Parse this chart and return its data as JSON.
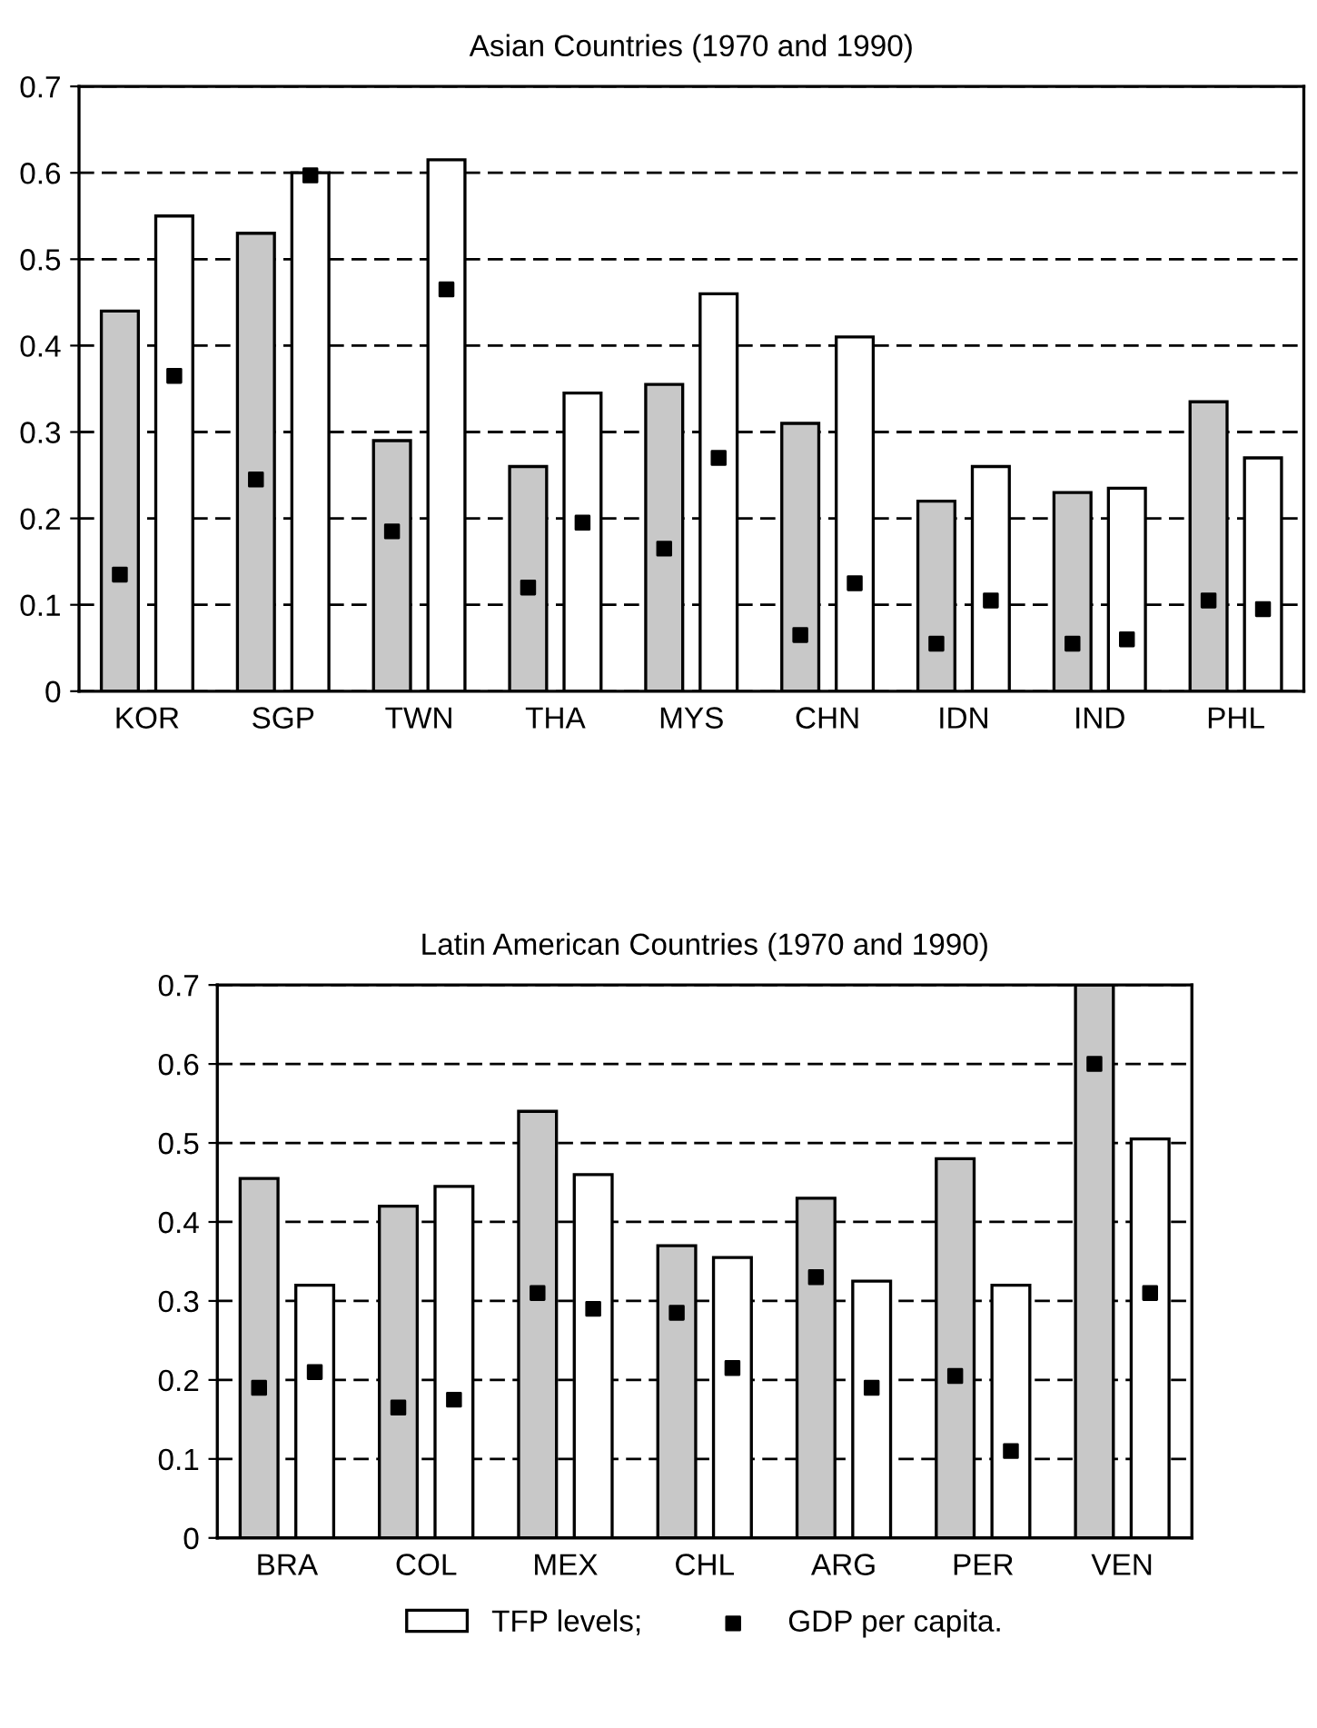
{
  "chart_data": [
    {
      "type": "bar",
      "title": "Asian Countries (1970 and 1990)",
      "categories": [
        "KOR",
        "SGP",
        "TWN",
        "THA",
        "MYS",
        "CHN",
        "IDN",
        "IND",
        "PHL"
      ],
      "series": [
        {
          "color": "#c8c8c8",
          "values": [
            0.44,
            0.53,
            0.29,
            0.26,
            0.355,
            0.31,
            0.22,
            0.23,
            0.335
          ]
        },
        {
          "color": "#ffffff",
          "values": [
            0.55,
            0.6,
            0.615,
            0.345,
            0.46,
            0.41,
            0.26,
            0.235,
            0.27
          ]
        },
        {
          "type": "scatter",
          "color": "#000000",
          "x": [
            "KOR",
            "SGP",
            "TWN",
            "THA",
            "MYS",
            "CHN",
            "IDN",
            "IND",
            "PHL"
          ],
          "values": [
            0.135,
            0.245,
            0.185,
            0.12,
            0.165,
            0.065,
            0.055,
            0.055,
            0.105
          ]
        },
        {
          "type": "scatter",
          "color": "#000000",
          "x": [
            "KOR",
            "SGP",
            "TWN",
            "THA",
            "MYS",
            "CHN",
            "IDN",
            "IND",
            "PHL"
          ],
          "values": [
            0.365,
            0.597,
            0.465,
            0.195,
            0.27,
            0.125,
            0.105,
            0.06,
            0.095
          ]
        }
      ],
      "ylim": [
        0,
        0.7
      ],
      "yticks": [
        {
          "value": 0,
          "label": "0"
        },
        0.1,
        0.2,
        0.3,
        0.4,
        0.5,
        0.6,
        0.7
      ],
      "grid": "y",
      "marker": "square"
    },
    {
      "type": "bar",
      "title": "Latin American Countries (1970 and 1990)",
      "categories": [
        "BRA",
        "COL",
        "MEX",
        "CHL",
        "ARG",
        "PER",
        "VEN"
      ],
      "series": [
        {
          "color": "#c8c8c8",
          "values": [
            0.455,
            0.42,
            0.54,
            0.37,
            0.43,
            0.48,
            0.7
          ]
        },
        {
          "name": "TFP levels;",
          "color": "#ffffff",
          "values": [
            0.32,
            0.445,
            0.46,
            0.355,
            0.325,
            0.32,
            0.505
          ]
        },
        {
          "type": "scatter",
          "name": "GDP per capita.",
          "color": "#000000",
          "x": [
            "BRA",
            "COL",
            "MEX",
            "CHL",
            "ARG",
            "PER",
            "VEN"
          ],
          "values": [
            0.19,
            0.165,
            0.31,
            0.285,
            0.33,
            0.205,
            0.6
          ]
        },
        {
          "type": "scatter",
          "color": "#000000",
          "x": [
            "BRA",
            "COL",
            "MEX",
            "CHL",
            "ARG",
            "PER",
            "VEN"
          ],
          "values": [
            0.21,
            0.175,
            0.29,
            0.215,
            0.19,
            0.11,
            0.31
          ]
        }
      ],
      "ylim": [
        0,
        0.7
      ],
      "yticks": [
        {
          "value": 0,
          "label": "0"
        },
        0.1,
        0.2,
        0.3,
        0.4,
        0.5,
        0.6,
        0.7
      ],
      "grid": "y",
      "marker": "square",
      "legend": "bottom"
    }
  ]
}
